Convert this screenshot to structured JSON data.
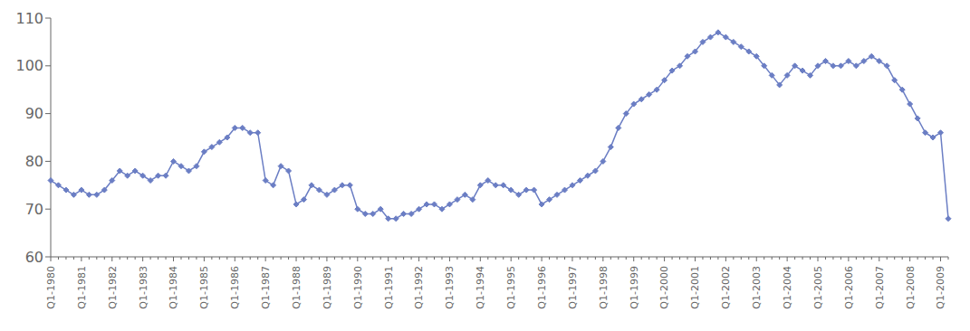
{
  "chart_data": {
    "type": "line",
    "categories": [
      "Q1-1980",
      null,
      null,
      null,
      "Q1-1981",
      null,
      null,
      null,
      "Q1-1982",
      null,
      null,
      null,
      "Q1-1983",
      null,
      null,
      null,
      "Q1-1984",
      null,
      null,
      null,
      "Q1-1985",
      null,
      null,
      null,
      "Q1-1986",
      null,
      null,
      null,
      "Q1-1987",
      null,
      null,
      null,
      "Q1-1988",
      null,
      null,
      null,
      "Q1-1989",
      null,
      null,
      null,
      "Q1-1990",
      null,
      null,
      null,
      "Q1-1991",
      null,
      null,
      null,
      "Q1-1992",
      null,
      null,
      null,
      "Q1-1993",
      null,
      null,
      null,
      "Q1-1994",
      null,
      null,
      null,
      "Q1-1995",
      null,
      null,
      null,
      "Q1-1996",
      null,
      null,
      null,
      "Q1-1997",
      null,
      null,
      null,
      "Q1-1998",
      null,
      null,
      null,
      "Q1-1999",
      null,
      null,
      null,
      "Q1-2000",
      null,
      null,
      null,
      "Q1-2001",
      null,
      null,
      null,
      "Q1-2002",
      null,
      null,
      null,
      "Q1-2003",
      null,
      null,
      null,
      "Q1-2004",
      null,
      null,
      null,
      "Q1-2005",
      null,
      null,
      null,
      "Q1-2006",
      null,
      null,
      null,
      "Q1-2007",
      null,
      null,
      null,
      "Q1-2008",
      null,
      null,
      null,
      "Q1-2009",
      null
    ],
    "values": [
      76,
      75,
      74,
      73,
      74,
      73,
      73,
      74,
      76,
      78,
      77,
      78,
      77,
      76,
      77,
      77,
      80,
      79,
      78,
      79,
      82,
      83,
      84,
      85,
      87,
      87,
      86,
      86,
      76,
      75,
      79,
      78,
      71,
      72,
      75,
      74,
      73,
      74,
      75,
      75,
      70,
      69,
      69,
      70,
      68,
      68,
      69,
      69,
      70,
      71,
      71,
      70,
      71,
      72,
      73,
      72,
      75,
      76,
      75,
      75,
      74,
      73,
      74,
      74,
      71,
      72,
      73,
      74,
      75,
      76,
      77,
      78,
      80,
      83,
      87,
      90,
      92,
      93,
      94,
      95,
      97,
      99,
      100,
      102,
      103,
      105,
      106,
      107,
      106,
      105,
      104,
      103,
      102,
      100,
      98,
      96,
      98,
      100,
      99,
      98,
      100,
      101,
      100,
      100,
      101,
      100,
      101,
      102,
      101,
      100,
      97,
      95,
      92,
      89,
      86,
      85,
      86,
      68
    ],
    "color": "#6b7ec4",
    "marker": "diamond",
    "ylim": [
      60,
      110
    ],
    "yticks": [
      60,
      70,
      80,
      90,
      100,
      110
    ],
    "grid": false
  }
}
